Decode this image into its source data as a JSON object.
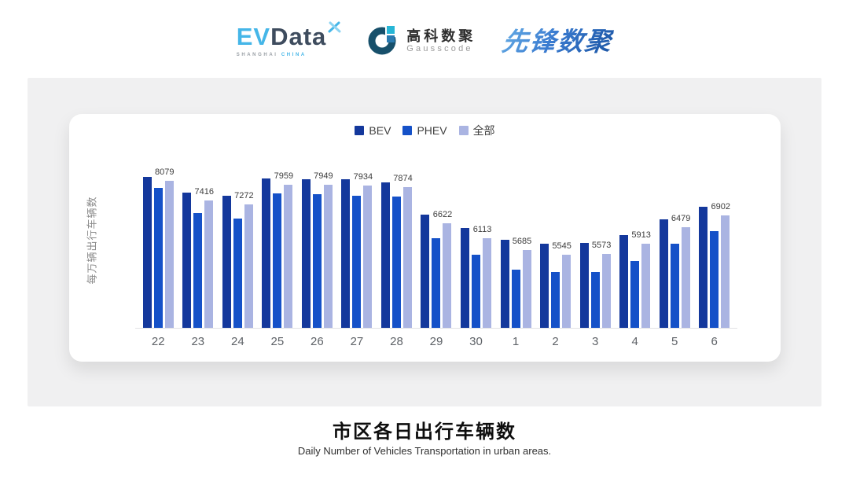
{
  "header": {
    "evdata": {
      "ev": "EV",
      "data": "Data",
      "sub_left": "SHANGHAI",
      "sub_right": "CHINA"
    },
    "gausscode": {
      "cn": "高科数聚",
      "en": "Gausscode"
    },
    "xianfeng": {
      "text": "先锋数聚"
    }
  },
  "chart_data": {
    "type": "bar",
    "categories": [
      "22",
      "23",
      "24",
      "25",
      "26",
      "27",
      "28",
      "29",
      "30",
      "1",
      "2",
      "3",
      "4",
      "5",
      "6"
    ],
    "series": [
      {
        "name": "BEV",
        "color": "#14389c",
        "values": [
          8230,
          7690,
          7570,
          8170,
          8150,
          8140,
          8050,
          6920,
          6450,
          6050,
          5900,
          5940,
          6210,
          6770,
          7200
        ]
      },
      {
        "name": "PHEV",
        "color": "#1551c8",
        "values": [
          7860,
          6980,
          6780,
          7660,
          7640,
          7580,
          7560,
          6110,
          5520,
          5020,
          4930,
          4930,
          5320,
          5900,
          6350
        ]
      },
      {
        "name": "全部",
        "color": "#aab4e2",
        "labeled": true,
        "values": [
          8079,
          7416,
          7272,
          7959,
          7949,
          7934,
          7874,
          6622,
          6113,
          5685,
          5545,
          5573,
          5913,
          6479,
          6902
        ]
      }
    ],
    "data_labels": [
      8079,
      7416,
      7272,
      7959,
      7949,
      7934,
      7874,
      6622,
      6113,
      5685,
      5545,
      5573,
      5913,
      6479,
      6902
    ],
    "title": "市区各日出行车辆数",
    "xlabel": "",
    "ylabel": "每万辆出行车辆数",
    "axis": {
      "min": 3000,
      "max": 8500,
      "tick_labels_visible": false
    },
    "grid": false,
    "legend_position": "top",
    "note": "labels shown for 全部 series only; BEV/PHEV values estimated from bar heights"
  },
  "footer": {
    "title": "市区各日出行车辆数",
    "subtitle": "Daily Number of Vehicles Transportation in urban areas."
  },
  "colors": {
    "bev": "#14389c",
    "phev": "#1551c8",
    "all": "#aab4e2",
    "panel_bg": "#f0f0f1",
    "card_bg": "#ffffff",
    "axis_line": "#e2e2e5",
    "evdata_cyan": "#45b6e8",
    "evdata_dark": "#3e4c5e",
    "gauss_dark": "#17506b",
    "xianfeng_blue": "#2e6fc0"
  }
}
